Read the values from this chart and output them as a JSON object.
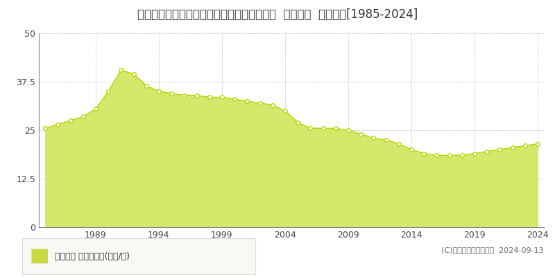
{
  "title": "広島県広島市安佐南区緑井８丁目８４８番３  地価公示  地価推移[1985-2024]",
  "years": [
    1985,
    1986,
    1987,
    1988,
    1989,
    1990,
    1991,
    1992,
    1993,
    1994,
    1995,
    1996,
    1997,
    1998,
    1999,
    2000,
    2001,
    2002,
    2003,
    2004,
    2005,
    2006,
    2007,
    2008,
    2009,
    2010,
    2011,
    2012,
    2013,
    2014,
    2015,
    2016,
    2017,
    2018,
    2019,
    2020,
    2021,
    2022,
    2023,
    2024
  ],
  "values": [
    25.5,
    26.5,
    27.5,
    28.5,
    30.5,
    35.0,
    40.5,
    39.5,
    36.5,
    35.0,
    34.5,
    34.0,
    34.0,
    33.5,
    33.5,
    33.0,
    32.5,
    32.0,
    31.5,
    30.0,
    27.0,
    25.5,
    25.5,
    25.5,
    25.0,
    24.0,
    23.0,
    22.5,
    21.5,
    20.0,
    19.0,
    18.5,
    18.5,
    18.5,
    19.0,
    19.5,
    20.0,
    20.5,
    21.0,
    21.5
  ],
  "fill_color": "#d4e96c",
  "line_color": "#b8d400",
  "marker_facecolor": "#ffffff",
  "marker_edgecolor": "#b8d400",
  "background_color": "#ffffff",
  "plot_bg_color": "#ffffff",
  "grid_color": "#cccccc",
  "ylim": [
    0,
    50
  ],
  "yticks": [
    0,
    12.5,
    25,
    37.5,
    50
  ],
  "xtick_years": [
    1989,
    1994,
    1999,
    2004,
    2009,
    2014,
    2019,
    2024
  ],
  "title_fontsize": 12,
  "tick_fontsize": 9,
  "legend_label": "地価公示 平均坪単価(万円/坪)",
  "legend_marker_color": "#c8d840",
  "copyright_text": "(C)土地価格ドットコム  2024-09-13",
  "copyright_fontsize": 8
}
